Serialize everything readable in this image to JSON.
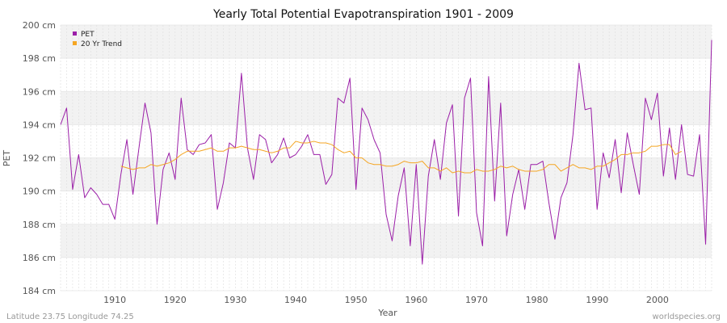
{
  "chart_data": {
    "type": "line",
    "title": "Yearly Total Potential Evapotranspiration 1901 - 2009",
    "xlabel": "Year",
    "ylabel": "PET",
    "y_unit": "cm",
    "xlim": [
      1901,
      2009
    ],
    "ylim": [
      184,
      200
    ],
    "x_ticks": [
      1910,
      1920,
      1930,
      1940,
      1950,
      1960,
      1970,
      1980,
      1990,
      2000
    ],
    "y_ticks": [
      184,
      186,
      188,
      190,
      192,
      194,
      196,
      198,
      200
    ],
    "y_tick_labels": [
      "184 cm",
      "186 cm",
      "188 cm",
      "190 cm",
      "192 cm",
      "194 cm",
      "196 cm",
      "198 cm",
      "200 cm"
    ],
    "grid": true,
    "legend_position": "top-left",
    "legend": [
      "PET",
      "20 Yr Trend"
    ],
    "series": [
      {
        "name": "PET",
        "color": "#9b1fa8",
        "x_start": 1901,
        "values": [
          194.0,
          195.0,
          190.1,
          192.2,
          189.6,
          190.2,
          189.8,
          189.2,
          189.2,
          188.3,
          191.0,
          193.1,
          189.8,
          192.6,
          195.3,
          193.5,
          188.0,
          191.3,
          192.3,
          190.7,
          195.6,
          192.5,
          192.2,
          192.8,
          192.9,
          193.4,
          188.9,
          190.5,
          192.9,
          192.6,
          197.1,
          192.6,
          190.7,
          193.4,
          193.1,
          191.7,
          192.2,
          193.2,
          192.0,
          192.2,
          192.7,
          193.4,
          192.2,
          192.2,
          190.4,
          191.0,
          195.6,
          195.3,
          196.8,
          190.1,
          195.0,
          194.3,
          193.1,
          192.3,
          188.6,
          187.0,
          189.7,
          191.4,
          186.7,
          191.6,
          185.6,
          190.9,
          193.1,
          190.7,
          194.1,
          195.2,
          188.5,
          195.6,
          196.8,
          188.7,
          186.7,
          196.9,
          189.4,
          195.3,
          187.3,
          189.8,
          191.3,
          188.9,
          191.6,
          191.6,
          191.8,
          189.3,
          187.1,
          189.6,
          190.5,
          193.4,
          197.7,
          194.9,
          195.0,
          188.9,
          192.3,
          190.8,
          193.1,
          189.9,
          193.5,
          191.6,
          189.8,
          195.6,
          194.3,
          195.9,
          190.9,
          193.8,
          190.7,
          194.0,
          191.0,
          190.9,
          193.4,
          186.8,
          199.1
        ]
      },
      {
        "name": "20 Yr Trend",
        "color": "#f5a623",
        "x_start": 1911,
        "values": [
          191.5,
          191.4,
          191.3,
          191.4,
          191.4,
          191.6,
          191.5,
          191.6,
          191.7,
          191.9,
          192.2,
          192.4,
          192.4,
          192.4,
          192.5,
          192.6,
          192.4,
          192.4,
          192.6,
          192.6,
          192.7,
          192.6,
          192.5,
          192.5,
          192.4,
          192.3,
          192.4,
          192.6,
          192.6,
          193.0,
          192.9,
          192.9,
          193.0,
          192.9,
          192.9,
          192.8,
          192.5,
          192.3,
          192.4,
          192.0,
          192.0,
          191.7,
          191.6,
          191.6,
          191.5,
          191.5,
          191.6,
          191.8,
          191.7,
          191.7,
          191.8,
          191.4,
          191.4,
          191.2,
          191.4,
          191.1,
          191.2,
          191.1,
          191.1,
          191.3,
          191.2,
          191.2,
          191.3,
          191.5,
          191.4,
          191.5,
          191.3,
          191.2,
          191.2,
          191.2,
          191.3,
          191.6,
          191.6,
          191.2,
          191.4,
          191.6,
          191.4,
          191.4,
          191.3,
          191.5,
          191.5,
          191.7,
          191.9,
          192.2,
          192.2,
          192.3,
          192.3,
          192.4,
          192.7,
          192.7,
          192.8,
          192.8,
          192.2,
          192.4
        ]
      }
    ]
  },
  "footer": {
    "left": "Latitude 23.75 Longitude 74.25",
    "right": "worldspecies.org"
  }
}
